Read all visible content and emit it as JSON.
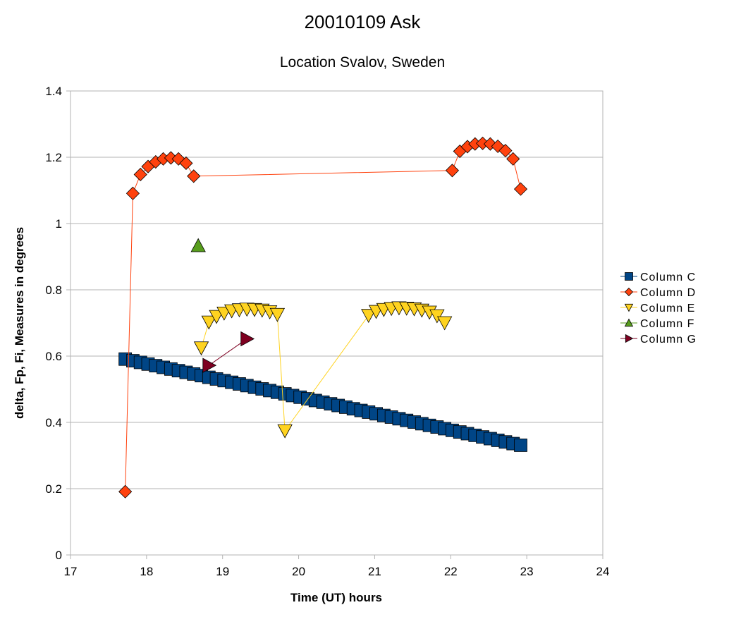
{
  "chart_data": {
    "type": "scatter",
    "title": "20010109 Ask",
    "subtitle": "Location Svalov, Sweden",
    "xlabel": "Time (UT) hours",
    "ylabel": "delta, Fp, Fi, Measures in degrees",
    "xlim": [
      17,
      24
    ],
    "ylim": [
      0,
      1.4
    ],
    "xticks": [
      "17",
      "18",
      "19",
      "20",
      "21",
      "22",
      "23",
      "24"
    ],
    "yticks": [
      "0",
      "0.2",
      "0.4",
      "0.6",
      "0.8",
      "1",
      "1.2",
      "1.4"
    ],
    "grid": "horizontal",
    "legend_position": "right",
    "series": [
      {
        "name": "Column C",
        "marker": "square",
        "color": "#004586",
        "x_start": 17.72,
        "x_step": 0.1,
        "count": 53,
        "y_start": 0.591,
        "y_end": 0.331,
        "line": true
      },
      {
        "name": "Column D",
        "marker": "diamond",
        "color": "#ff420e",
        "x": [
          17.72,
          17.82,
          17.92,
          18.02,
          18.12,
          18.22,
          18.32,
          18.42,
          18.52,
          18.62,
          22.02,
          22.12,
          22.22,
          22.32,
          22.42,
          22.52,
          22.62,
          22.72,
          22.82,
          22.92
        ],
        "y": [
          0.191,
          1.091,
          1.148,
          1.172,
          1.186,
          1.195,
          1.198,
          1.195,
          1.182,
          1.143,
          1.16,
          1.218,
          1.232,
          1.24,
          1.242,
          1.24,
          1.233,
          1.22,
          1.195,
          1.104
        ],
        "line": true
      },
      {
        "name": "Column E",
        "marker": "triangle-down",
        "color": "#ffd320",
        "x": [
          18.72,
          18.82,
          18.92,
          19.02,
          19.12,
          19.22,
          19.32,
          19.42,
          19.52,
          19.62,
          19.72,
          19.82,
          20.92,
          21.02,
          21.12,
          21.22,
          21.32,
          21.42,
          21.52,
          21.62,
          21.72,
          21.82,
          21.92
        ],
        "y": [
          0.625,
          0.703,
          0.72,
          0.73,
          0.737,
          0.74,
          0.742,
          0.741,
          0.739,
          0.734,
          0.726,
          0.375,
          0.723,
          0.735,
          0.741,
          0.744,
          0.746,
          0.745,
          0.743,
          0.739,
          0.733,
          0.722,
          0.701
        ],
        "line": true
      },
      {
        "name": "Column F",
        "marker": "triangle-up",
        "color": "#579d1c",
        "x": [
          18.68
        ],
        "y": [
          0.933
        ],
        "line": false
      },
      {
        "name": "Column G",
        "marker": "triangle-right",
        "color": "#7e0021",
        "x": [
          18.82,
          19.32
        ],
        "y": [
          0.572,
          0.652
        ],
        "line": true
      }
    ]
  }
}
